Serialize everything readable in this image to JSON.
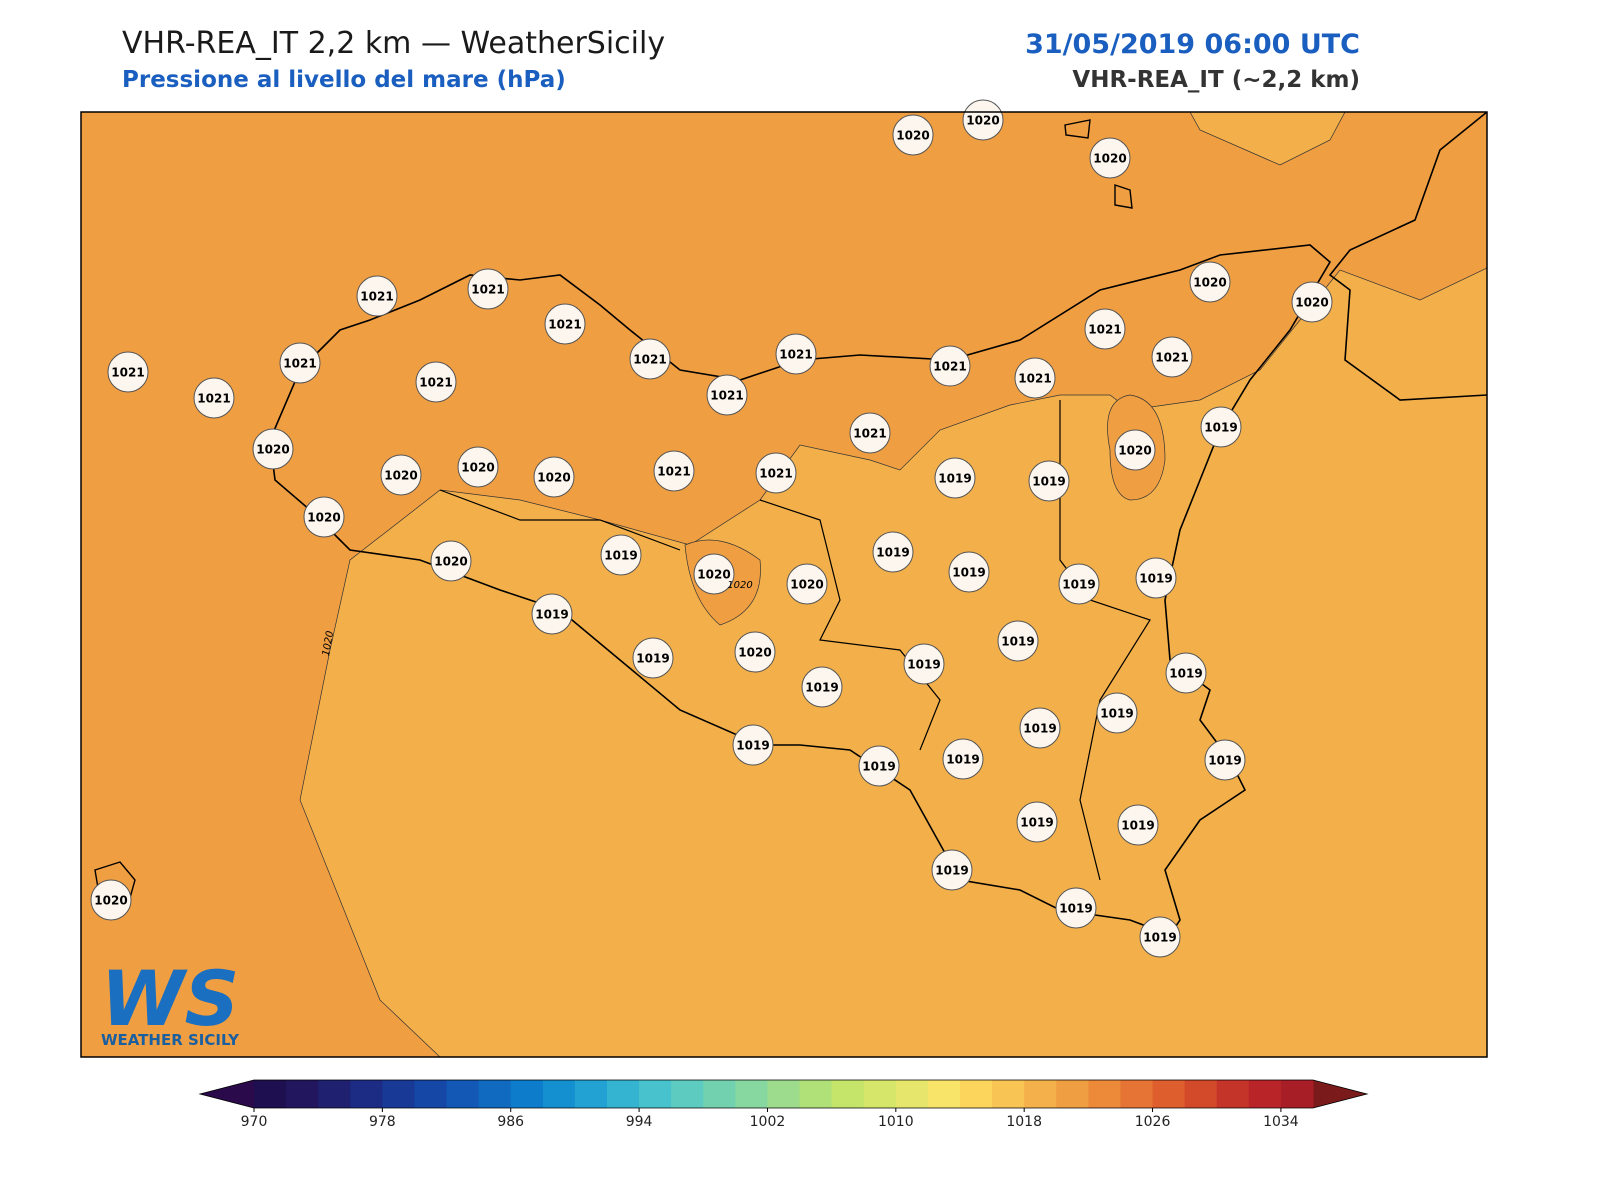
{
  "header": {
    "title": "VHR-REA_IT 2,2 km — WeatherSicily",
    "subtitle": "Pressione al livello del mare (hPa)",
    "datetime": "31/05/2019 06:00 UTC",
    "model": "VHR-REA_IT (~2,2 km)"
  },
  "map": {
    "contour_labels": [
      "1020",
      "1020"
    ],
    "station_labels": [
      "1020",
      "1020",
      "1020",
      "1021",
      "1021",
      "1021",
      "1021",
      "1021",
      "1021",
      "1021",
      "1021",
      "1021",
      "1021",
      "1021",
      "1021",
      "1021",
      "1021",
      "1020",
      "1020",
      "1019",
      "1021",
      "1020",
      "1020",
      "1020",
      "1020",
      "1020",
      "1021",
      "1021",
      "1019",
      "1019",
      "1020",
      "1020",
      "1019",
      "1020",
      "1020",
      "1019",
      "1019",
      "1019",
      "1019",
      "1019",
      "1019",
      "1020",
      "1019",
      "1019",
      "1019",
      "1019",
      "1019",
      "1019",
      "1019",
      "1019",
      "1019",
      "1019",
      "1019",
      "1019",
      "1019",
      "1019",
      "1019",
      "1020"
    ]
  },
  "logo": {
    "mark": "WS",
    "name": "WEATHER SICILY"
  },
  "colorbar": {
    "min": 970,
    "max": 1036,
    "ticks": [
      970,
      978,
      986,
      994,
      1002,
      1010,
      1018,
      1026,
      1034
    ],
    "under_color": "#2a0a4a",
    "over_color": "#7a1a1a",
    "colors": [
      "#1e1050",
      "#22165e",
      "#1f2070",
      "#1c2c84",
      "#183a96",
      "#1548a6",
      "#1258b4",
      "#0f6ac0",
      "#0d7cca",
      "#1490d0",
      "#22a2d2",
      "#34b4d0",
      "#48c2cc",
      "#5ecbc0",
      "#72d2b0",
      "#86d8a0",
      "#9cdc8c",
      "#b0e078",
      "#c4e46a",
      "#d6e66a",
      "#e6e66c",
      "#f8e468",
      "#fcd65c",
      "#f8c454",
      "#f4b04a",
      "#f09e42",
      "#ec8a3a",
      "#e67434",
      "#de5e2e",
      "#d24a2a",
      "#c43428",
      "#b82428",
      "#a81e26"
    ]
  }
}
